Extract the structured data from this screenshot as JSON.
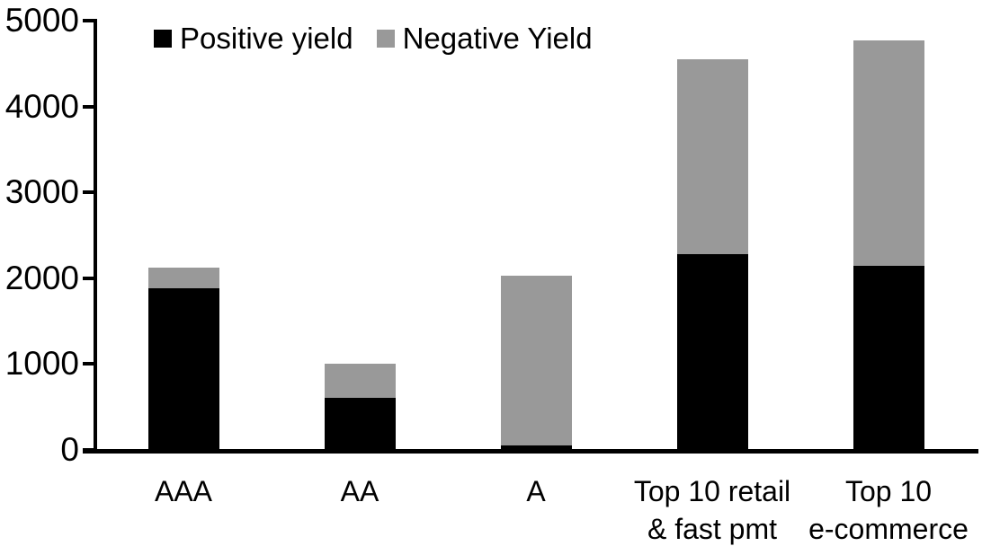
{
  "chart_data": {
    "type": "bar",
    "stacked": true,
    "title": "",
    "xlabel": "",
    "ylabel": "",
    "categories": [
      "AAA",
      "AA",
      "A",
      "Top 10 retail\n& fast pmt",
      "Top 10\ne-commerce"
    ],
    "series": [
      {
        "name": "Positive yield",
        "color": "#000000",
        "values": [
          1880,
          610,
          50,
          2280,
          2140
        ]
      },
      {
        "name": "Negative Yield",
        "color": "#999999",
        "values": [
          240,
          390,
          1980,
          2270,
          2630
        ]
      }
    ],
    "totals": [
      2120,
      1000,
      2030,
      4550,
      4770
    ],
    "ylim": [
      0,
      5000
    ],
    "yticks": [
      0,
      1000,
      2000,
      3000,
      4000,
      5000
    ],
    "grid": false,
    "legend_position": "top-left",
    "axis_color": "#000000",
    "background_color": "#ffffff"
  }
}
